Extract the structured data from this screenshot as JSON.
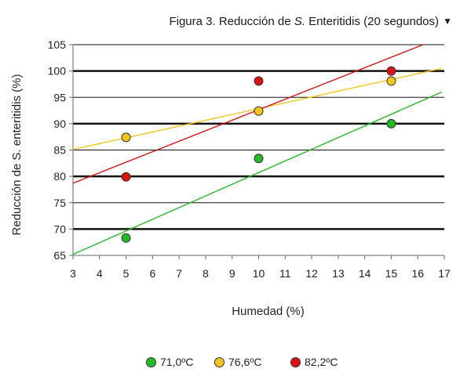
{
  "chart_data": {
    "type": "scatter",
    "title": {
      "prefix": "Figura 3. Reducción de ",
      "italic": "S.",
      "suffix": " Enteritidis (20 segundos)"
    },
    "title_menu_icon": "▼",
    "xlabel": "Humedad (%)",
    "ylabel": "Reducción de S. enteritidis (%)",
    "xlim": [
      3,
      17
    ],
    "ylim": [
      65,
      105
    ],
    "x_ticks": [
      3,
      4,
      5,
      6,
      7,
      8,
      9,
      10,
      11,
      12,
      13,
      14,
      15,
      16,
      17
    ],
    "y_ticks": [
      65,
      70,
      75,
      80,
      85,
      90,
      95,
      100,
      105
    ],
    "grid": "horizontal",
    "legend_position": "bottom",
    "series": [
      {
        "name": "71,0ºC",
        "color": "#22bb22",
        "points": [
          [
            5,
            68.3
          ],
          [
            10,
            83.4
          ],
          [
            15,
            90.0
          ]
        ],
        "trendline": [
          [
            3,
            65.2
          ],
          [
            16.9,
            96.0
          ]
        ]
      },
      {
        "name": "76,6ºC",
        "color": "#f5c518",
        "points": [
          [
            5,
            87.4
          ],
          [
            10,
            92.4
          ],
          [
            15,
            98.1
          ]
        ],
        "trendline": [
          [
            3,
            85.1
          ],
          [
            16.9,
            100.5
          ]
        ]
      },
      {
        "name": "82,2ºC",
        "color": "#dd1111",
        "points": [
          [
            5,
            79.9
          ],
          [
            10,
            98.1
          ],
          [
            15,
            100.0
          ]
        ],
        "trendline": [
          [
            3,
            78.7
          ],
          [
            16.2,
            105.0
          ]
        ]
      }
    ]
  }
}
